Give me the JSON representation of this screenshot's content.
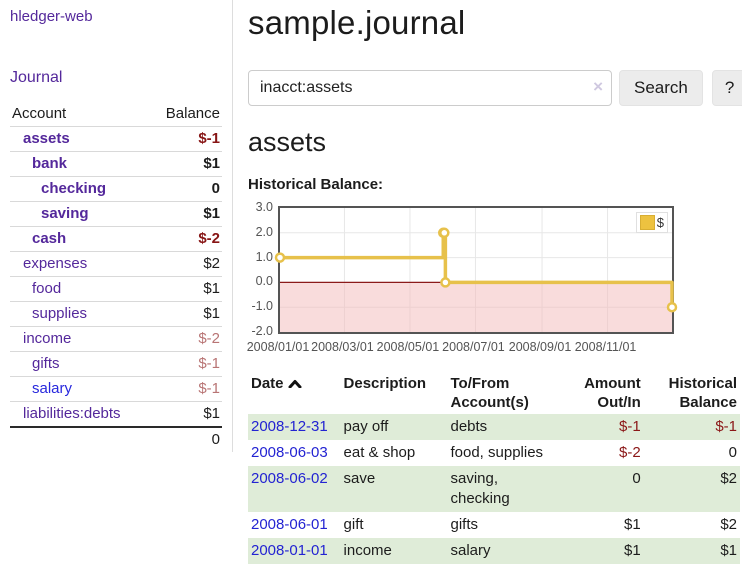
{
  "app": {
    "title": "hledger-web"
  },
  "sidebar": {
    "journal_label": "Journal",
    "headers": {
      "account": "Account",
      "balance": "Balance"
    },
    "accounts": [
      {
        "name": "assets",
        "balance": "$-1",
        "depth": 1,
        "bold": true,
        "link_style": "visited",
        "balance_style": "neg"
      },
      {
        "name": "bank",
        "balance": "$1",
        "depth": 2,
        "bold": true,
        "link_style": "visited",
        "balance_style": "normal"
      },
      {
        "name": "checking",
        "balance": "0",
        "depth": 3,
        "bold": true,
        "link_style": "visited",
        "balance_style": "normal"
      },
      {
        "name": "saving",
        "balance": "$1",
        "depth": 3,
        "bold": true,
        "link_style": "visited",
        "balance_style": "normal"
      },
      {
        "name": "cash",
        "balance": "$-2",
        "depth": 2,
        "bold": true,
        "link_style": "visited",
        "balance_style": "neg"
      },
      {
        "name": "expenses",
        "balance": "$2",
        "depth": 1,
        "bold": false,
        "link_style": "visited",
        "balance_style": "normal"
      },
      {
        "name": "food",
        "balance": "$1",
        "depth": 2,
        "bold": false,
        "link_style": "visited",
        "balance_style": "normal"
      },
      {
        "name": "supplies",
        "balance": "$1",
        "depth": 2,
        "bold": false,
        "link_style": "visited",
        "balance_style": "normal"
      },
      {
        "name": "income",
        "balance": "$-2",
        "depth": 1,
        "bold": false,
        "link_style": "visited",
        "balance_style": "neg-muted"
      },
      {
        "name": "gifts",
        "balance": "$-1",
        "depth": 2,
        "bold": false,
        "link_style": "visited",
        "balance_style": "neg-muted"
      },
      {
        "name": "salary",
        "balance": "$-1",
        "depth": 2,
        "bold": false,
        "link_style": "unvisited",
        "balance_style": "neg-muted"
      },
      {
        "name": "liabilities:debts",
        "balance": "$1",
        "depth": 1,
        "bold": false,
        "link_style": "visited",
        "balance_style": "normal"
      }
    ],
    "total": "0"
  },
  "main": {
    "title": "sample.journal",
    "search": {
      "value": "inacct:assets",
      "clear_icon": "×",
      "button_label": "Search",
      "help_label": "?"
    },
    "account_heading": "assets",
    "chart_heading": "Historical Balance:"
  },
  "chart_data": {
    "type": "line",
    "step": true,
    "title": "Historical Balance",
    "xlabel": "",
    "ylabel": "",
    "x_range": [
      "2008-01-01",
      "2008-12-31"
    ],
    "ylim": [
      -2.0,
      3.0
    ],
    "y_ticks": [
      3.0,
      2.0,
      1.0,
      0.0,
      -1.0,
      -2.0
    ],
    "x_tick_dates": [
      "2008-01-01",
      "2008-03-01",
      "2008-05-01",
      "2008-07-01",
      "2008-09-01",
      "2008-11-01"
    ],
    "x_tick_labels": [
      "2008/01/01",
      "2008/03/01",
      "2008/05/01",
      "2008/07/01",
      "2008/09/01",
      "2008/11/01"
    ],
    "grid": true,
    "legend_position": "top-right",
    "legend": {
      "label": "$",
      "swatch_color": "#edc240"
    },
    "negative_fill": "#f3b9b9",
    "zero_line_color": "#8b1a1a",
    "series": [
      {
        "name": "$",
        "color": "#e7c14b",
        "points": [
          [
            "2008-01-01",
            1
          ],
          [
            "2008-06-01",
            2
          ],
          [
            "2008-06-02",
            2
          ],
          [
            "2008-06-03",
            0
          ],
          [
            "2008-12-31",
            -1
          ]
        ]
      }
    ]
  },
  "register": {
    "headers": {
      "date": "Date",
      "description": "Description",
      "accounts": "To/From Account(s)",
      "amount": "Amount Out/In",
      "balance": "Historical Balance"
    },
    "rows": [
      {
        "date": "2008-12-31",
        "description": "pay off",
        "accounts": "debts",
        "amount": "$-1",
        "amount_negative": true,
        "balance": "$-1",
        "balance_negative": true
      },
      {
        "date": "2008-06-03",
        "description": "eat & shop",
        "accounts": "food, supplies",
        "amount": "$-2",
        "amount_negative": true,
        "balance": "0",
        "balance_negative": false
      },
      {
        "date": "2008-06-02",
        "description": "save",
        "accounts": "saving, checking",
        "amount": "0",
        "amount_negative": false,
        "balance": "$2",
        "balance_negative": false
      },
      {
        "date": "2008-06-01",
        "description": "gift",
        "accounts": "gifts",
        "amount": "$1",
        "amount_negative": false,
        "balance": "$2",
        "balance_negative": false
      },
      {
        "date": "2008-01-01",
        "description": "income",
        "accounts": "salary",
        "amount": "$1",
        "amount_negative": false,
        "balance": "$1",
        "balance_negative": false
      }
    ]
  }
}
